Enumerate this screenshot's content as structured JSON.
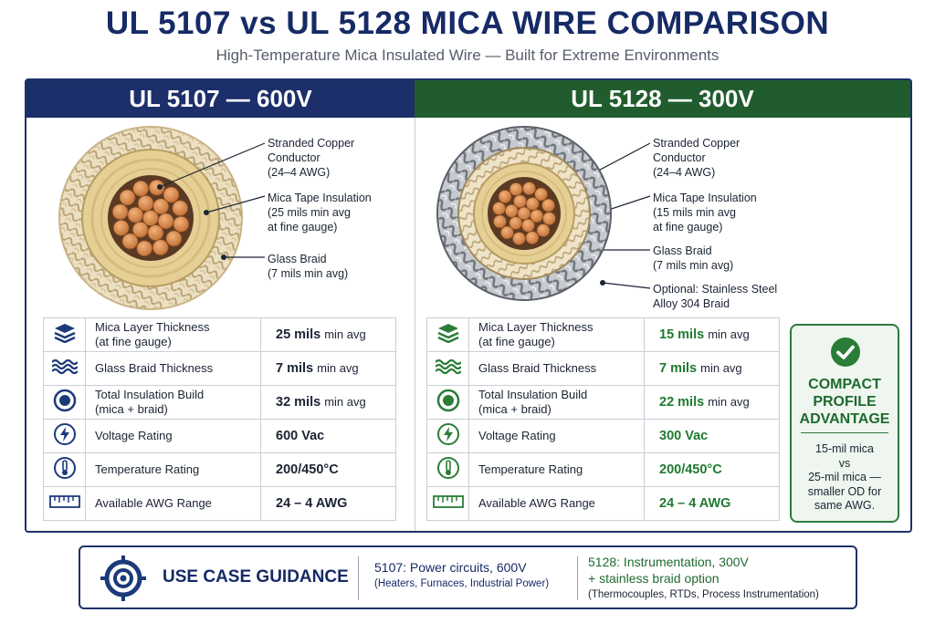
{
  "title": "UL 5107 vs UL 5128 MICA WIRE COMPARISON",
  "subtitle": "High-Temperature Mica Insulated Wire — Built for Extreme Environments",
  "left": {
    "header": "UL 5107 — 600V",
    "callouts": {
      "conductor": [
        "Stranded Copper",
        "Conductor",
        "(24–4 AWG)"
      ],
      "mica": [
        "Mica Tape Insulation",
        "(25 mils min avg",
        "at fine gauge)"
      ],
      "braid": [
        "Glass Braid",
        "(7 mils min avg)"
      ]
    },
    "specs": [
      {
        "name": [
          "Mica Layer Thickness",
          "(at fine gauge)"
        ],
        "value": "25 mils",
        "unit": "min avg",
        "icon": "layers-icon"
      },
      {
        "name": [
          "Glass Braid Thickness"
        ],
        "value": "7 mils",
        "unit": "min avg",
        "icon": "braid-icon"
      },
      {
        "name": [
          "Total Insulation Build",
          "(mica + braid)"
        ],
        "value": "32 mils",
        "unit": "min avg",
        "icon": "cross-section-icon"
      },
      {
        "name": [
          "Voltage Rating"
        ],
        "value": "600 Vac",
        "unit": "",
        "icon": "lightning-icon"
      },
      {
        "name": [
          "Temperature Rating"
        ],
        "value": "200/450°C",
        "unit": "",
        "icon": "thermometer-icon"
      },
      {
        "name": [
          "Available AWG Range"
        ],
        "value": "24 – 4 AWG",
        "unit": "",
        "icon": "ruler-icon"
      }
    ]
  },
  "right": {
    "header": "UL 5128 — 300V",
    "callouts": {
      "conductor": [
        "Stranded Copper",
        "Conductor",
        "(24–4 AWG)"
      ],
      "mica": [
        "Mica Tape Insulation",
        "(15 mils min avg",
        "at fine gauge)"
      ],
      "braid": [
        "Glass Braid",
        "(7 mils min avg)"
      ],
      "steel": [
        "Optional: Stainless Steel",
        "Alloy 304 Braid"
      ]
    },
    "specs": [
      {
        "name": [
          "Mica Layer Thickness",
          "(at fine gauge)"
        ],
        "value": "15 mils",
        "unit": "min avg",
        "icon": "layers-icon"
      },
      {
        "name": [
          "Glass Braid Thickness"
        ],
        "value": "7 mils",
        "unit": "min avg",
        "icon": "braid-icon"
      },
      {
        "name": [
          "Total Insulation Build",
          "(mica + braid)"
        ],
        "value": "22 mils",
        "unit": "min avg",
        "icon": "cross-section-icon"
      },
      {
        "name": [
          "Voltage Rating"
        ],
        "value": "300 Vac",
        "unit": "",
        "icon": "lightning-icon"
      },
      {
        "name": [
          "Temperature Rating"
        ],
        "value": "200/450°C",
        "unit": "",
        "icon": "thermometer-icon"
      },
      {
        "name": [
          "Available AWG Range"
        ],
        "value": "24 – 4 AWG",
        "unit": "",
        "icon": "ruler-icon"
      }
    ]
  },
  "advantage": {
    "title": [
      "COMPACT",
      "PROFILE",
      "ADVANTAGE"
    ],
    "desc": [
      "15-mil mica",
      "vs",
      "25-mil mica —",
      "smaller OD for",
      "same AWG."
    ],
    "icon": "checkmark-icon"
  },
  "guidance": {
    "title": "USE CASE GUIDANCE",
    "icon": "target-icon",
    "a_main": "5107: Power circuits, 600V",
    "a_sub": "(Heaters, Furnaces, Industrial Power)",
    "b_main": [
      "5128: Instrumentation, 300V",
      "+ stainless braid option"
    ],
    "b_sub": "(Thermocouples, RTDs, Process Instrumentation)"
  },
  "colors": {
    "navy": "#1c2f6a",
    "green": "#215c2e",
    "copper": "#d7874a",
    "mica": "#e6cf95"
  }
}
